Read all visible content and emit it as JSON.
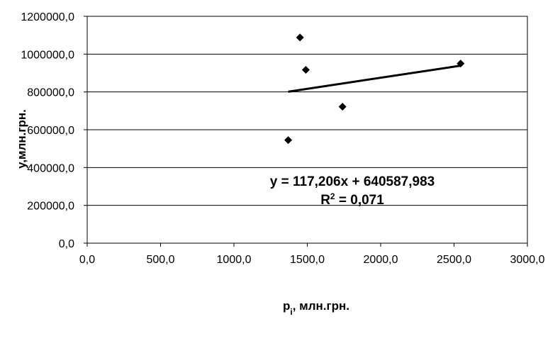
{
  "chart_data": {
    "type": "scatter",
    "title": "",
    "xlabel": {
      "base": "p",
      "sub": "i",
      "rest": ", млн.грн."
    },
    "ylabel": "y,млн.грн.",
    "xlim": [
      0,
      3000
    ],
    "ylim": [
      0,
      1200000
    ],
    "x_ticks": [
      0,
      500,
      1000,
      1500,
      2000,
      2500,
      3000
    ],
    "y_ticks": [
      0,
      200000,
      400000,
      600000,
      800000,
      1000000,
      1200000
    ],
    "x_tick_labels": [
      "0,0",
      "500,0",
      "1000,0",
      "1500,0",
      "2000,0",
      "2500,0",
      "3000,0"
    ],
    "y_tick_labels": [
      "0,0",
      "200000,0",
      "400000,0",
      "600000,0",
      "800000,0",
      "1000000,0",
      "1200000,0"
    ],
    "grid": "horizontal",
    "marker": "diamond",
    "points": [
      {
        "x": 1370,
        "y": 545000
      },
      {
        "x": 1450,
        "y": 1088000
      },
      {
        "x": 1490,
        "y": 917000
      },
      {
        "x": 1740,
        "y": 722000
      },
      {
        "x": 2545,
        "y": 950000
      }
    ],
    "trendline": {
      "x_start": 1370,
      "x_end": 2545,
      "slope": 117.206,
      "intercept": 640587.983
    },
    "annotations": {
      "equation": "y = 117,206x + 640587,983",
      "r2_base": "R",
      "r2_sup": "2",
      "r2_rest": " = 0,071"
    }
  }
}
